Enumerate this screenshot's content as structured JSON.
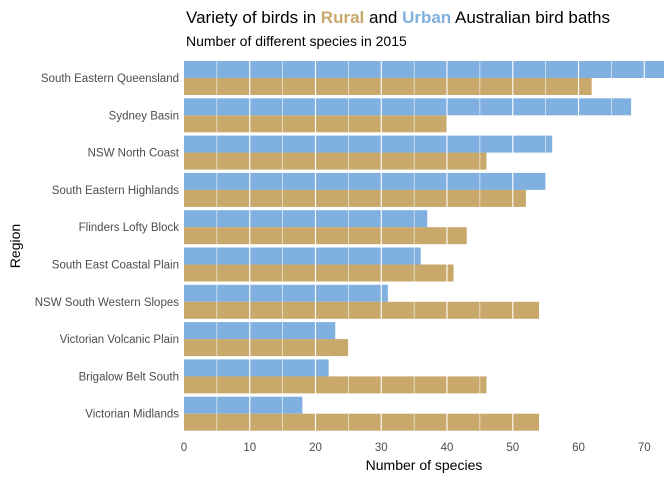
{
  "colors": {
    "rural": "#c9a96b",
    "urban": "#7fb0e0",
    "gridline": "#ffffff",
    "background": "#ffffff"
  },
  "chart_data": {
    "type": "bar",
    "orientation": "horizontal",
    "title": {
      "prefix": "Variety of birds in ",
      "rural_word": "Rural",
      "middle": " and ",
      "urban_word": "Urban",
      "suffix": " Australian bird baths"
    },
    "subtitle": "Number of different species in 2015",
    "xlabel": "Number of species",
    "ylabel": "Region",
    "xlim": [
      0,
      73
    ],
    "xticks": [
      0,
      10,
      20,
      30,
      40,
      50,
      60,
      70
    ],
    "grid": true,
    "legend": "none",
    "categories": [
      "South Eastern Queensland",
      "Sydney Basin",
      "NSW North Coast",
      "South Eastern Highlands",
      "Flinders Lofty Block",
      "South East Coastal Plain",
      "NSW South Western Slopes",
      "Victorian Volcanic Plain",
      "Brigalow Belt South",
      "Victorian Midlands"
    ],
    "series": [
      {
        "name": "Urban",
        "values": [
          73,
          68,
          56,
          55,
          37,
          36,
          31,
          23,
          22,
          18
        ]
      },
      {
        "name": "Rural",
        "values": [
          62,
          40,
          46,
          52,
          43,
          41,
          54,
          25,
          46,
          54
        ]
      }
    ]
  }
}
